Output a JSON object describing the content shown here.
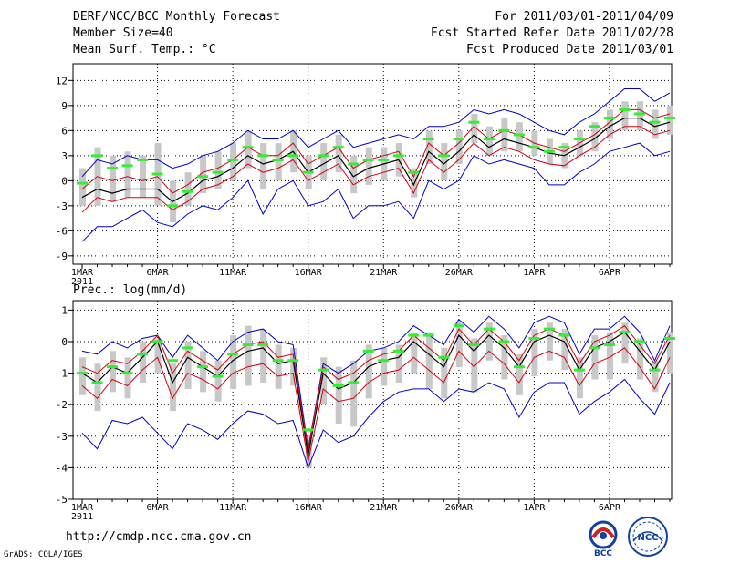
{
  "header": {
    "left": [
      "DERF/NCC/BCC Monthly Forecast",
      "Member Size=40",
      "Mean Surf. Temp.: °C"
    ],
    "right": [
      "For 2011/03/01-2011/04/09",
      "Fcst Started Refer Date 2011/02/28",
      "Fcst Produced Date 2011/03/01"
    ]
  },
  "footer": {
    "url": "http://cmdp.ncc.cma.gov.cn",
    "credit": "GrADS: COLA/IGES",
    "logo_left_text": "BCC",
    "logo_right_text": "NCC"
  },
  "colors": {
    "band": "#c8c8c8",
    "mean": "#000000",
    "spread": "#d4000f",
    "extreme": "#0000cc",
    "obs": "#33ee33"
  },
  "chart_data": [
    {
      "type": "line",
      "title": "Mean Surf. Temp.: °C",
      "ylim": [
        -10,
        14
      ],
      "yticks": [
        12,
        9,
        6,
        3,
        0,
        -3,
        -6,
        -9
      ],
      "xlabels": [
        "1MAR",
        "6MAR",
        "11MAR",
        "16MAR",
        "21MAR",
        "26MAR",
        "1APR",
        "6APR"
      ],
      "xlabel_year": "2011",
      "days": 40,
      "series": [
        {
          "name": "mean",
          "values": [
            -2,
            -1,
            -1.5,
            -1,
            -1,
            -1,
            -2.5,
            -1.5,
            0,
            0.5,
            1.5,
            3,
            2,
            2.5,
            3.5,
            1,
            2,
            3,
            0.5,
            1.5,
            2,
            2.5,
            -0.5,
            3.5,
            2,
            3.5,
            5.5,
            4,
            5,
            4.5,
            4,
            3.3,
            3,
            4,
            5,
            6.5,
            7.5,
            7.5,
            6.5,
            7
          ]
        },
        {
          "name": "spread_upper",
          "values": [
            -1,
            0.5,
            0,
            0.5,
            0,
            0.5,
            -1.5,
            -0.5,
            1,
            1.5,
            2.5,
            4,
            3,
            3,
            4.5,
            2,
            3,
            4,
            1.5,
            2.5,
            3,
            3.5,
            0.5,
            4.5,
            3,
            4.5,
            6.5,
            5,
            6,
            5.5,
            4.5,
            4,
            3.5,
            4.5,
            5.5,
            7,
            8.5,
            8.5,
            7.5,
            8
          ]
        },
        {
          "name": "spread_lower",
          "values": [
            -3.8,
            -2,
            -2.5,
            -2,
            -2,
            -2,
            -3.5,
            -2.5,
            -1,
            -0.5,
            0.5,
            2,
            1,
            1.5,
            2.5,
            0,
            1,
            2,
            -0.5,
            0.5,
            1,
            1.5,
            -1.5,
            2.5,
            1,
            2.5,
            4.5,
            3,
            4,
            3.5,
            2.5,
            2,
            1.8,
            3,
            4,
            5.5,
            6.5,
            6.5,
            5.5,
            6
          ]
        },
        {
          "name": "max",
          "values": [
            0.5,
            2.5,
            2,
            3,
            2.5,
            2.5,
            1.5,
            2,
            3,
            3.5,
            4.5,
            6,
            5,
            5,
            6,
            4,
            5,
            6,
            4,
            4.5,
            5,
            5.5,
            5,
            6.5,
            6.5,
            7,
            8.5,
            8,
            8.5,
            8,
            7,
            6,
            5.5,
            7,
            8,
            9.5,
            11,
            11,
            9.5,
            10.5
          ]
        },
        {
          "name": "min",
          "values": [
            -7.3,
            -5.5,
            -5.5,
            -4.5,
            -3.5,
            -5,
            -5.5,
            -4,
            -3,
            -3.5,
            -2,
            0,
            -4,
            -1,
            0,
            -3,
            -2.5,
            -1,
            -4.5,
            -3,
            -3,
            -2.5,
            -4.5,
            0,
            -1,
            0,
            3,
            2,
            2.5,
            2,
            1.5,
            -0.5,
            -0.5,
            1,
            2,
            3.5,
            4,
            4.5,
            3,
            3.5
          ]
        },
        {
          "name": "obs",
          "values": [
            -0.3,
            3,
            1.5,
            1.8,
            2.5,
            0.8,
            -3,
            -1.3,
            0.5,
            1,
            2.5,
            4,
            3,
            2.5,
            3,
            1,
            3,
            4,
            2,
            2.5,
            2.5,
            3,
            1,
            5,
            3,
            5,
            7,
            5,
            6,
            5.5,
            4,
            3.5,
            4,
            5,
            6.5,
            7.5,
            8.5,
            8,
            7,
            7.5
          ]
        },
        {
          "name": "band_upper",
          "values": [
            1.5,
            4,
            3,
            3.5,
            3,
            4.5,
            0,
            1,
            3,
            3.5,
            4.5,
            6,
            4.5,
            4.5,
            6,
            3,
            4.5,
            5.5,
            3,
            4,
            4,
            4.5,
            1.5,
            6,
            4.5,
            6,
            8,
            6.5,
            7.5,
            7,
            6,
            5,
            4.5,
            6,
            7,
            8.5,
            9.5,
            9.5,
            8.5,
            9
          ]
        },
        {
          "name": "band_lower",
          "values": [
            -3,
            -3,
            -2.5,
            -2,
            -2,
            -3,
            -5,
            -3,
            -1.5,
            -1,
            0,
            1.5,
            -1,
            0,
            1,
            -1,
            0,
            1,
            -1.5,
            -0.5,
            0,
            0.5,
            -2,
            2,
            0,
            2,
            4.5,
            3,
            3.5,
            3.5,
            3,
            2,
            1.5,
            3,
            3.5,
            5,
            6,
            6,
            5,
            5.5
          ]
        }
      ]
    },
    {
      "type": "line",
      "title": "Prec.: log(mm/d)",
      "ylim": [
        -5,
        1.3
      ],
      "yticks": [
        1,
        0,
        -1,
        -2,
        -3,
        -4,
        -5
      ],
      "xlabels": [
        "1MAR",
        "6MAR",
        "11MAR",
        "16MAR",
        "21MAR",
        "26MAR",
        "1APR",
        "6APR"
      ],
      "xlabel_year": "2011",
      "days": 40,
      "series": [
        {
          "name": "mean",
          "values": [
            -1,
            -1.3,
            -0.8,
            -1,
            -0.5,
            0,
            -1.3,
            -0.5,
            -0.8,
            -1.1,
            -0.6,
            -0.3,
            -0.2,
            -0.7,
            -0.6,
            -3.6,
            -1,
            -1.5,
            -1.3,
            -0.8,
            -0.6,
            -0.5,
            0,
            -0.4,
            -0.8,
            0.2,
            -0.3,
            0.2,
            -0.2,
            -0.8,
            0,
            0.2,
            0,
            -0.9,
            -0.2,
            0,
            0.3,
            -0.3,
            -0.9,
            0
          ]
        },
        {
          "name": "spread_upper",
          "values": [
            -0.8,
            -1,
            -0.6,
            -0.7,
            -0.3,
            0.2,
            -1,
            -0.3,
            -0.6,
            -0.9,
            -0.4,
            -0.1,
            0,
            -0.5,
            -0.4,
            -3.4,
            -0.8,
            -1.2,
            -1,
            -0.6,
            -0.4,
            -0.3,
            0.2,
            -0.2,
            -0.6,
            0.4,
            -0.1,
            0.4,
            0,
            -0.6,
            0.2,
            0.4,
            0.2,
            -0.7,
            0,
            0.2,
            0.5,
            -0.1,
            -0.7,
            0.2
          ]
        },
        {
          "name": "spread_lower",
          "values": [
            -1.4,
            -1.8,
            -1.2,
            -1.4,
            -0.9,
            -0.5,
            -1.8,
            -1,
            -1.2,
            -1.5,
            -1,
            -0.8,
            -0.7,
            -1.1,
            -1,
            -3.8,
            -1.5,
            -1.9,
            -1.8,
            -1.3,
            -1,
            -0.9,
            -0.5,
            -0.9,
            -1.3,
            -0.3,
            -0.8,
            -0.3,
            -0.7,
            -1.3,
            -0.5,
            -0.3,
            -0.5,
            -1.4,
            -0.7,
            -0.5,
            -0.2,
            -0.8,
            -1.5,
            -0.5
          ]
        },
        {
          "name": "max",
          "values": [
            -0.3,
            -0.4,
            0,
            -0.2,
            0.1,
            0.2,
            -0.5,
            0.2,
            -0.2,
            -0.6,
            0,
            0.3,
            0.4,
            0,
            -0.1,
            -3.4,
            -0.7,
            -1,
            -0.7,
            -0.3,
            -0.2,
            0,
            0.5,
            0.2,
            -0.1,
            0.7,
            0.3,
            0.8,
            0.4,
            -0.2,
            0.6,
            0.8,
            0.6,
            -0.4,
            0.4,
            0.4,
            0.8,
            0.3,
            -0.6,
            0.5
          ]
        },
        {
          "name": "min",
          "values": [
            -2.9,
            -3.4,
            -2.5,
            -2.6,
            -2.4,
            -2.9,
            -3.4,
            -2.6,
            -2.8,
            -3.1,
            -2.6,
            -2.2,
            -2.3,
            -2.6,
            -2.5,
            -4,
            -2.8,
            -3.2,
            -3,
            -2.4,
            -1.9,
            -1.6,
            -1.5,
            -1.5,
            -1.9,
            -1.5,
            -1.6,
            -1.3,
            -1.5,
            -2.4,
            -1.6,
            -1.3,
            -1.3,
            -2.3,
            -1.9,
            -1.6,
            -1.2,
            -1.8,
            -2.3,
            -1.3
          ]
        },
        {
          "name": "obs",
          "values": [
            -1,
            -1.3,
            -0.8,
            -1,
            -0.4,
            0,
            -0.6,
            -0.2,
            -0.8,
            -1.1,
            -0.4,
            -0.1,
            -0.1,
            -0.6,
            -0.6,
            -2.8,
            -0.9,
            -1.4,
            -1.3,
            -0.3,
            -0.6,
            -0.3,
            0.2,
            0.2,
            -0.5,
            0.5,
            -0.1,
            0.4,
            0,
            -0.8,
            0.1,
            0.4,
            0.2,
            -0.9,
            -0.2,
            -0.1,
            0.3,
            0,
            -0.9,
            0.1
          ]
        },
        {
          "name": "band_upper",
          "values": [
            -0.5,
            -0.7,
            -0.3,
            -0.5,
            0,
            0.1,
            -0.7,
            0,
            -0.3,
            -0.6,
            0.2,
            0.5,
            0.4,
            -0.1,
            -0.2,
            -3,
            -0.5,
            -0.8,
            -0.6,
            -0.1,
            -0.2,
            -0.1,
            0.3,
            0.3,
            -0.2,
            0.6,
            0.1,
            0.6,
            0.2,
            -0.4,
            0.4,
            0.6,
            0.4,
            -0.5,
            0.2,
            0.3,
            0.6,
            0.1,
            -0.6,
            0.3
          ]
        },
        {
          "name": "band_lower",
          "values": [
            -1.7,
            -2.2,
            -1.6,
            -1.8,
            -1.3,
            -1,
            -2.2,
            -1.5,
            -1.6,
            -1.9,
            -1.5,
            -1.4,
            -1.3,
            -1.5,
            -1.4,
            -4,
            -2,
            -2.6,
            -2.7,
            -1.8,
            -1.4,
            -1.3,
            -1,
            -1.5,
            -1.8,
            -0.8,
            -1.6,
            -0.6,
            -1.2,
            -1.7,
            -1.1,
            -0.6,
            -0.9,
            -1.8,
            -1.2,
            -1.2,
            -0.7,
            -1.2,
            -1.6,
            -1
          ]
        }
      ]
    }
  ]
}
